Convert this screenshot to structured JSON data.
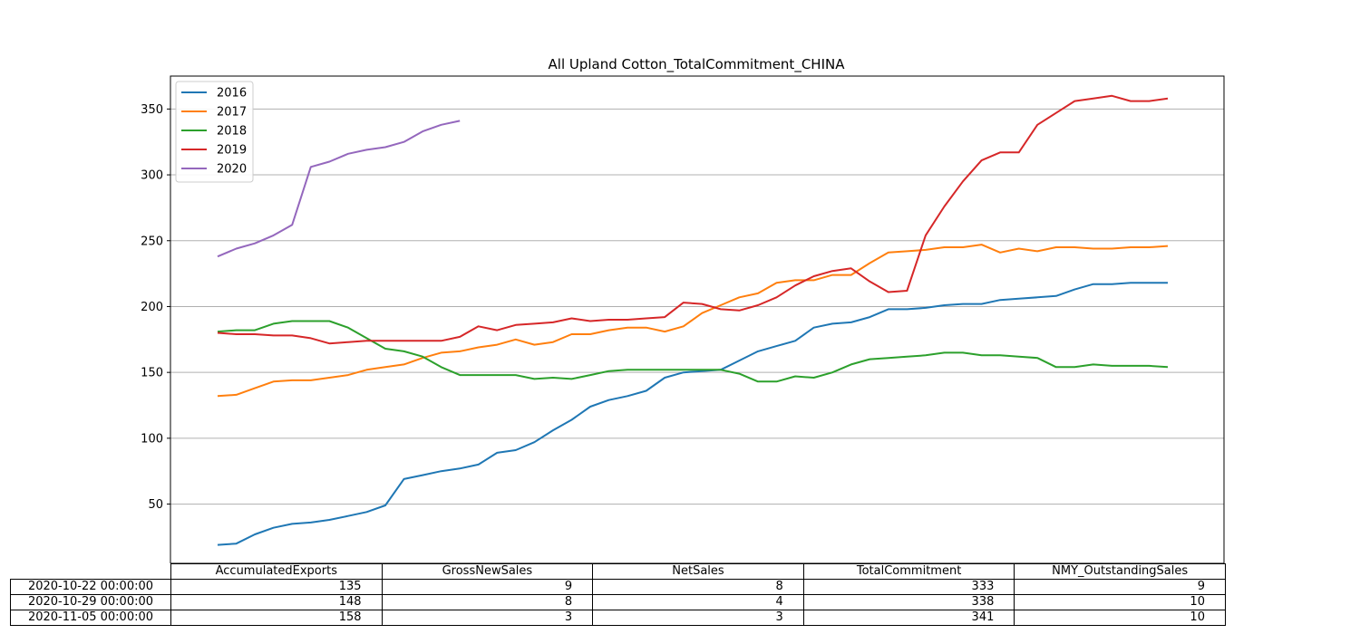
{
  "chart_data": {
    "type": "line",
    "title": "All Upland Cotton_TotalCommitment_CHINA",
    "xlabel": "",
    "ylabel": "",
    "ylim": [
      5,
      375
    ],
    "yticks": [
      50,
      100,
      150,
      200,
      250,
      300,
      350
    ],
    "grid": "horizontal",
    "legend_placement": "top-left",
    "series": [
      {
        "name": "2016",
        "color": "#1f77b4",
        "values": [
          19,
          20,
          27,
          32,
          35,
          36,
          38,
          41,
          44,
          49,
          69,
          72,
          75,
          77,
          80,
          89,
          91,
          97,
          106,
          114,
          124,
          129,
          132,
          136,
          146,
          150,
          151,
          152,
          159,
          166,
          170,
          174,
          184,
          187,
          188,
          192,
          198,
          198,
          199,
          201,
          202,
          202,
          205,
          206,
          207,
          208,
          213,
          217,
          217,
          218,
          218,
          218
        ]
      },
      {
        "name": "2017",
        "color": "#ff7f0e",
        "values": [
          132,
          133,
          138,
          143,
          144,
          144,
          146,
          148,
          152,
          154,
          156,
          161,
          165,
          166,
          169,
          171,
          175,
          171,
          173,
          179,
          179,
          182,
          184,
          184,
          181,
          185,
          195,
          201,
          207,
          210,
          218,
          220,
          220,
          224,
          224,
          233,
          241,
          242,
          243,
          245,
          245,
          247,
          241,
          244,
          242,
          245,
          245,
          244,
          244,
          245,
          245,
          246
        ]
      },
      {
        "name": "2018",
        "color": "#2ca02c",
        "values": [
          181,
          182,
          182,
          187,
          189,
          189,
          189,
          184,
          176,
          168,
          166,
          162,
          154,
          148,
          148,
          148,
          148,
          145,
          146,
          145,
          148,
          151,
          152,
          152,
          152,
          152,
          152,
          152,
          149,
          143,
          143,
          147,
          146,
          150,
          156,
          160,
          161,
          162,
          163,
          165,
          165,
          163,
          163,
          162,
          161,
          154,
          154,
          156,
          155,
          155,
          155,
          154
        ]
      },
      {
        "name": "2019",
        "color": "#d62728",
        "values": [
          180,
          179,
          179,
          178,
          178,
          176,
          172,
          173,
          174,
          174,
          174,
          174,
          174,
          177,
          185,
          182,
          186,
          187,
          188,
          191,
          189,
          190,
          190,
          191,
          192,
          203,
          202,
          198,
          197,
          201,
          207,
          216,
          223,
          227,
          229,
          219,
          211,
          212,
          254,
          276,
          295,
          311,
          317,
          317,
          338,
          347,
          356,
          358,
          360,
          356,
          356,
          358
        ]
      },
      {
        "name": "2020",
        "color": "#9467bd",
        "values": [
          238,
          244,
          248,
          254,
          262,
          306,
          310,
          316,
          319,
          321,
          325,
          333,
          338,
          341
        ]
      }
    ]
  },
  "table": {
    "columns": [
      "AccumulatedExports",
      "GrossNewSales",
      "NetSales",
      "TotalCommitment",
      "NMY_OutstandingSales"
    ],
    "rows": [
      {
        "label": "2020-10-22 00:00:00",
        "values": [
          "135",
          "9",
          "8",
          "333",
          "9"
        ]
      },
      {
        "label": "2020-10-29 00:00:00",
        "values": [
          "148",
          "8",
          "4",
          "338",
          "10"
        ]
      },
      {
        "label": "2020-11-05 00:00:00",
        "values": [
          "158",
          "3",
          "3",
          "341",
          "10"
        ]
      }
    ]
  }
}
